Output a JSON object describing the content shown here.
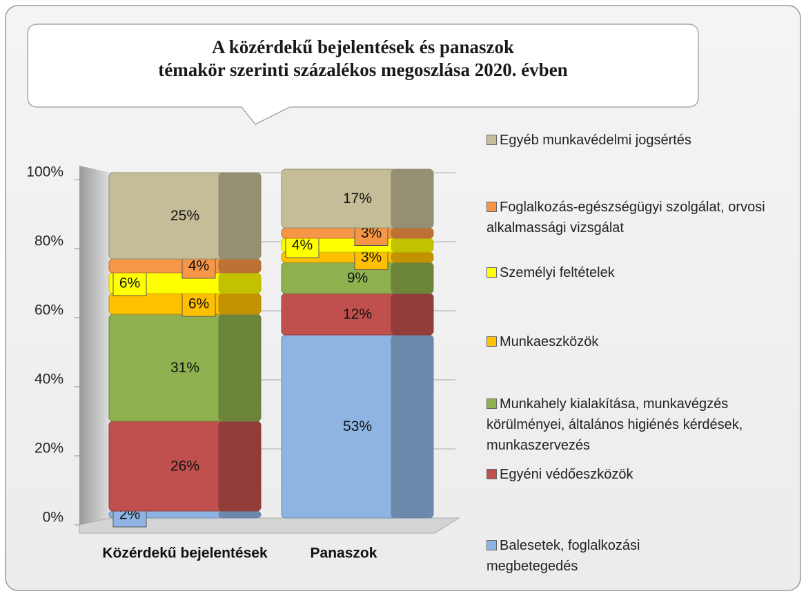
{
  "chart_data": {
    "type": "stacked_bar",
    "title": "A közérdekű bejelentések és panaszok\ntémakör szerinti százalékos megoszlása  2020. évben",
    "categories": [
      "Közérdekű bejelentések",
      "Panaszok"
    ],
    "ylim": [
      0,
      100
    ],
    "yticks": [
      {
        "value": 0,
        "label": "0%"
      },
      {
        "value": 20,
        "label": "20%"
      },
      {
        "value": 40,
        "label": "40%"
      },
      {
        "value": 60,
        "label": "60%"
      },
      {
        "value": 80,
        "label": "80%"
      },
      {
        "value": 100,
        "label": "100%"
      }
    ],
    "grid": true,
    "legend": "right",
    "series": [
      {
        "name": "Balesetek, foglalkozási megbetegedés",
        "color": "#8db4e2",
        "values": [
          2,
          53
        ],
        "value_labels": [
          "2%",
          "53%"
        ]
      },
      {
        "name": "Egyéni védőeszközök",
        "color": "#c0504d",
        "values": [
          26,
          12
        ],
        "value_labels": [
          "26%",
          "12%"
        ]
      },
      {
        "name": "Munkahely kialakítása, munkavégzés körülményei, általános higiénés kérdések, munkaszervezés",
        "color": "#8fb04e",
        "values": [
          31,
          9
        ],
        "value_labels": [
          "31%",
          "9%"
        ]
      },
      {
        "name": "Munkaeszközök",
        "color": "#ffc000",
        "values": [
          6,
          3
        ],
        "value_labels": [
          "6%",
          "3%"
        ]
      },
      {
        "name": "Személyi feltételek",
        "color": "#ffff00",
        "values": [
          6,
          4
        ],
        "value_labels": [
          "6%",
          "4%"
        ]
      },
      {
        "name": "Foglalkozás-egészségügyi szolgálat, orvosi alkalmassági vizsgálat",
        "color": "#f79646",
        "values": [
          4,
          3
        ],
        "value_labels": [
          "4%",
          "3%"
        ]
      },
      {
        "name": "Egyéb munkavédelmi jogsértés",
        "color": "#c4bd97",
        "values": [
          25,
          17
        ],
        "value_labels": [
          "25%",
          "17%"
        ]
      }
    ]
  }
}
